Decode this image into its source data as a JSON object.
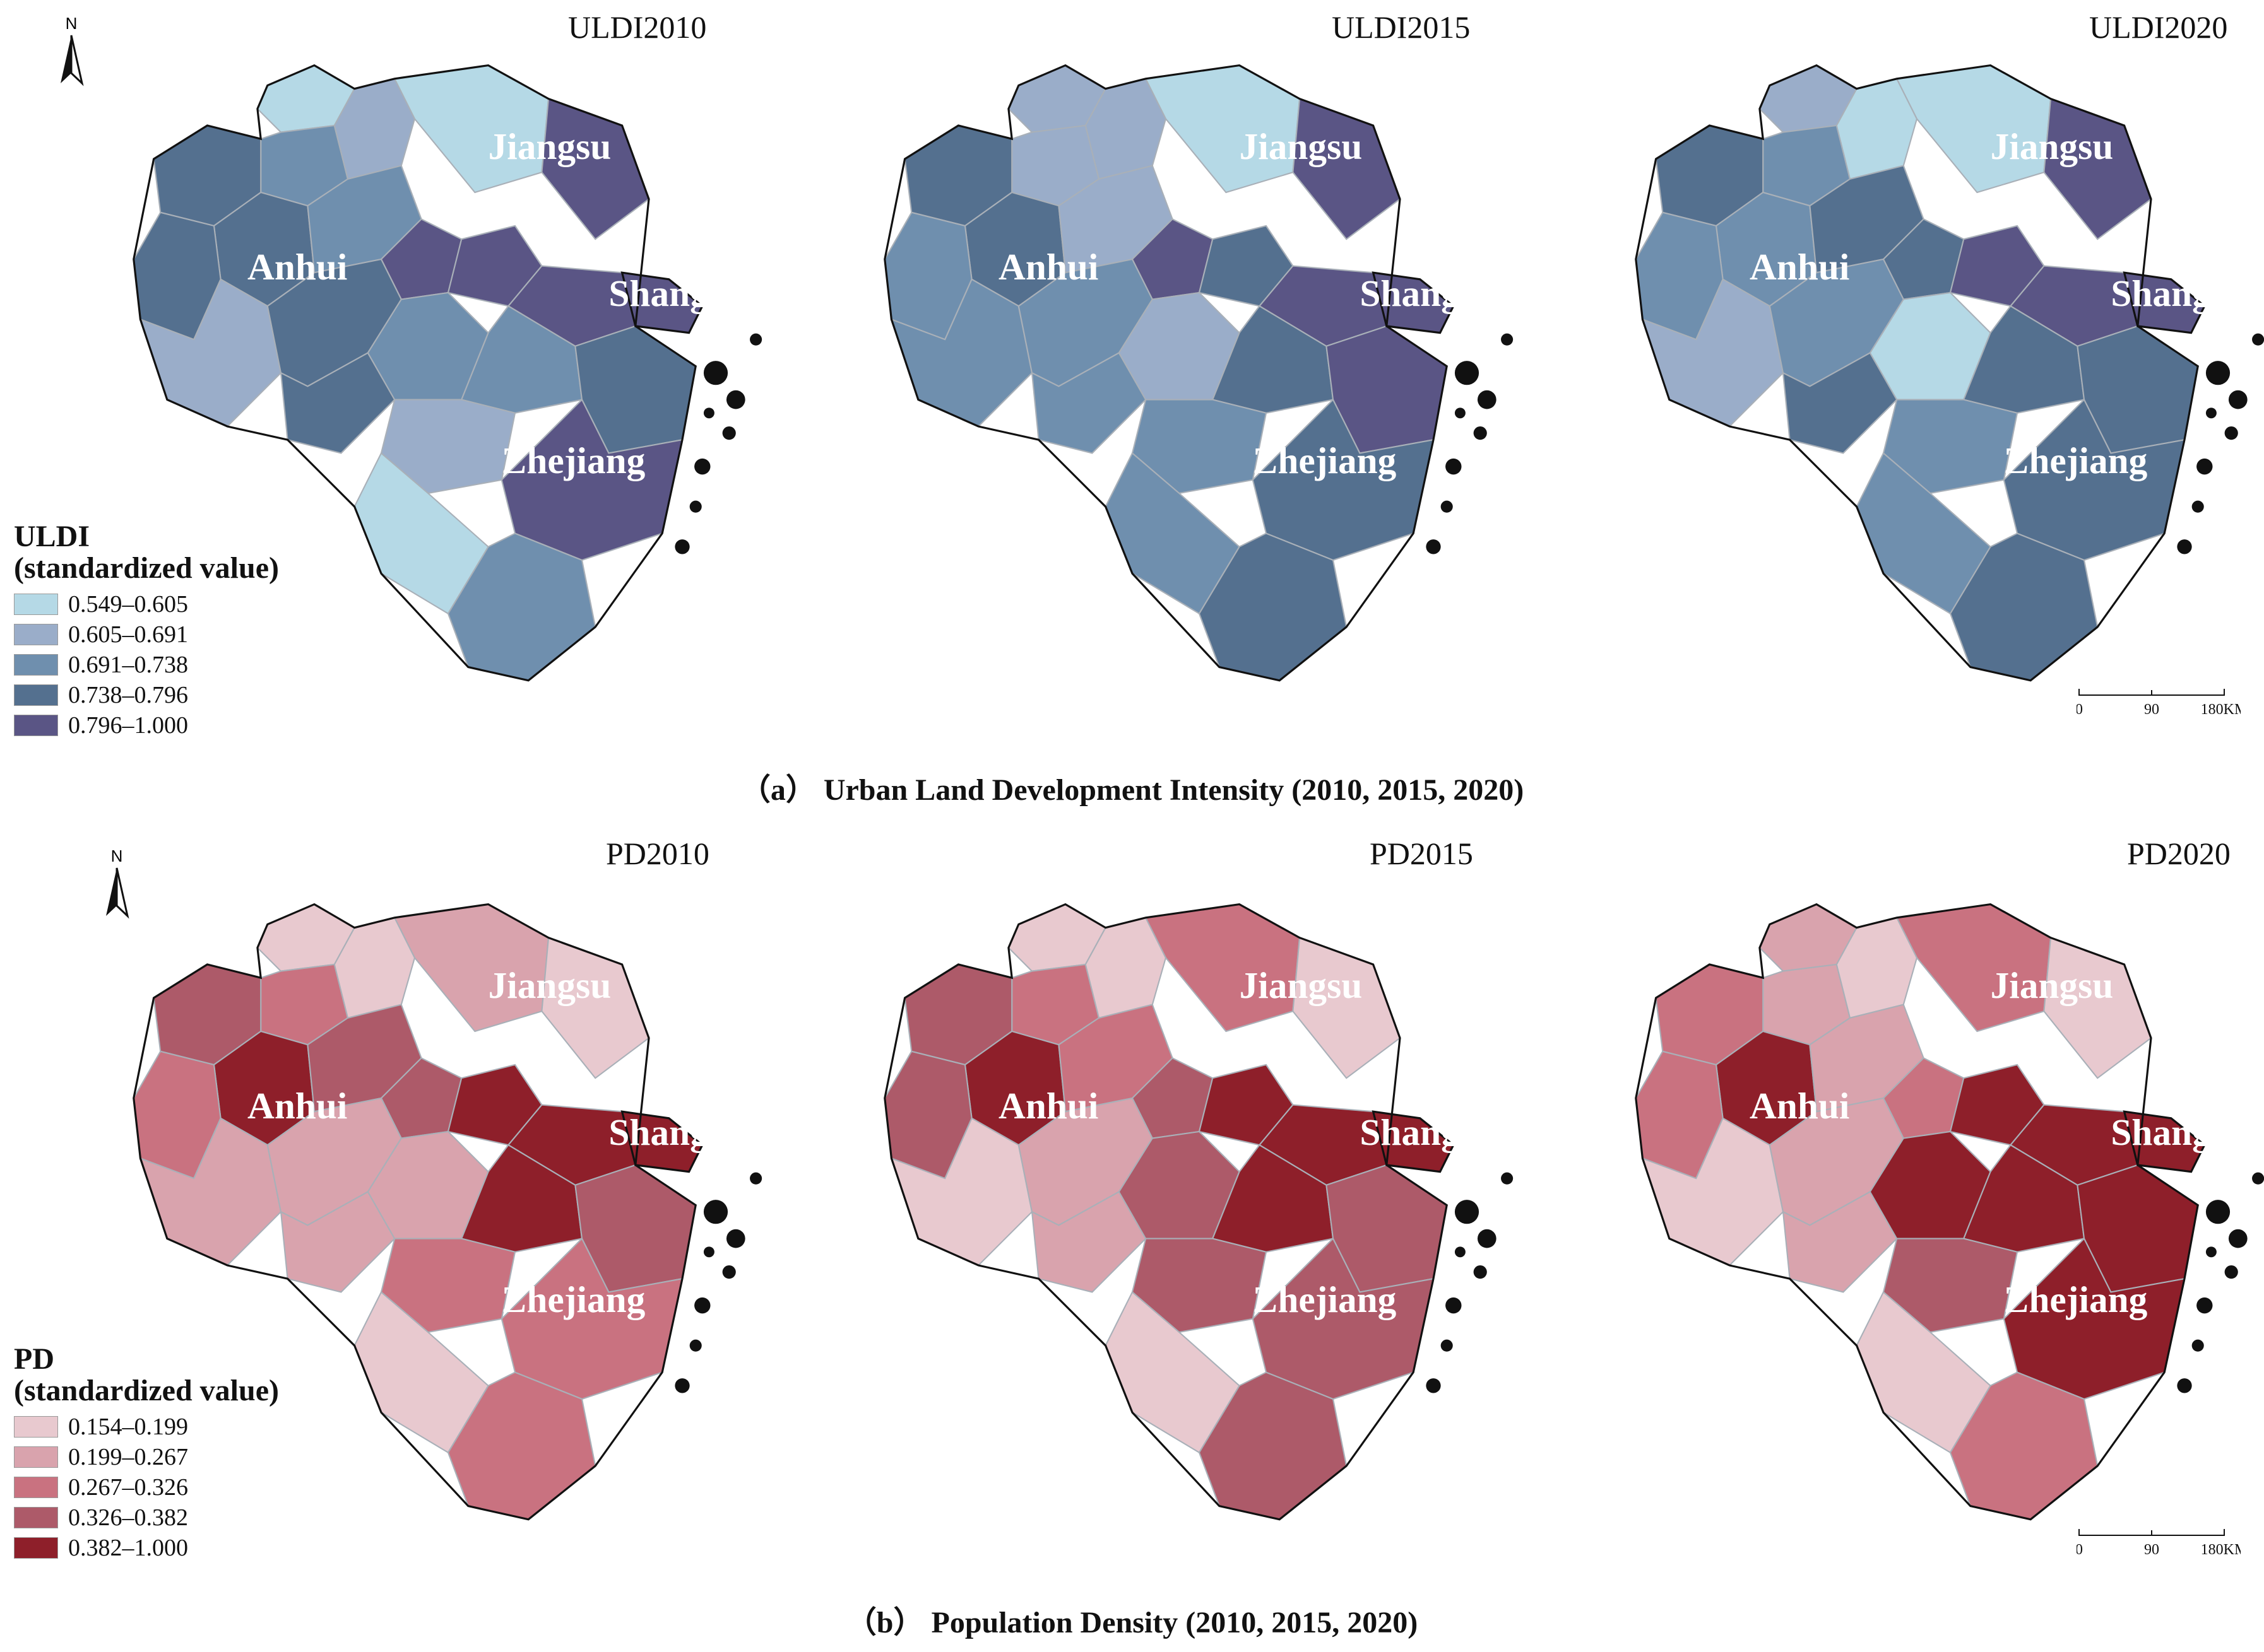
{
  "figure": {
    "captions": {
      "a": "（a） Urban Land Development Intensity (2010, 2015, 2020)",
      "b": "（b） Population Density (2010, 2015, 2020)"
    },
    "north_label": "N",
    "scale_bar": {
      "ticks": [
        "0",
        "90",
        "180KM"
      ]
    }
  },
  "provinces": [
    "Jiangsu",
    "Anhui",
    "Shanghai",
    "Zhejiang"
  ],
  "uldi": {
    "panels": [
      "ULDI2010",
      "ULDI2015",
      "ULDI2020"
    ],
    "legend_title_1": "ULDI",
    "legend_title_2": "(standardized value)",
    "classes": [
      "0.549–0.605",
      "0.605–0.691",
      "0.691–0.738",
      "0.738–0.796",
      "0.796–1.000"
    ],
    "colors": [
      "#b5d9e6",
      "#9aadc9",
      "#6f8fae",
      "#54708f",
      "#5a5585"
    ],
    "region_class": [
      [
        0,
        2,
        3,
        1,
        3,
        3,
        2,
        4,
        1,
        3,
        3,
        2,
        4,
        0,
        4,
        4,
        2,
        1,
        3,
        0,
        4,
        2
      ],
      [
        1,
        1,
        3,
        1,
        3,
        2,
        1,
        4,
        2,
        2,
        2,
        1,
        3,
        0,
        4,
        4,
        3,
        2,
        4,
        2,
        3,
        3
      ],
      [
        1,
        2,
        3,
        0,
        2,
        2,
        3,
        3,
        1,
        2,
        3,
        0,
        4,
        0,
        4,
        4,
        3,
        2,
        3,
        2,
        3,
        3
      ]
    ]
  },
  "pd": {
    "panels": [
      "PD2010",
      "PD2015",
      "PD2020"
    ],
    "legend_title_1": "PD",
    "legend_title_2": "(standardized value)",
    "classes": [
      "0.154–0.199",
      "0.199–0.267",
      "0.267–0.326",
      "0.326–0.382",
      "0.382–1.000"
    ],
    "colors": [
      "#e8c9cf",
      "#d9a3ad",
      "#c97280",
      "#ad5a69",
      "#8e1f2a"
    ],
    "region_class": [
      [
        0,
        2,
        3,
        0,
        4,
        2,
        3,
        3,
        1,
        1,
        1,
        1,
        4,
        1,
        4,
        0,
        4,
        2,
        3,
        0,
        2,
        2
      ],
      [
        0,
        2,
        3,
        0,
        4,
        3,
        2,
        3,
        0,
        1,
        1,
        3,
        4,
        2,
        4,
        0,
        4,
        3,
        3,
        0,
        3,
        3
      ],
      [
        1,
        1,
        2,
        0,
        4,
        2,
        1,
        2,
        0,
        1,
        1,
        4,
        4,
        2,
        4,
        0,
        4,
        3,
        4,
        0,
        4,
        2
      ]
    ]
  }
}
